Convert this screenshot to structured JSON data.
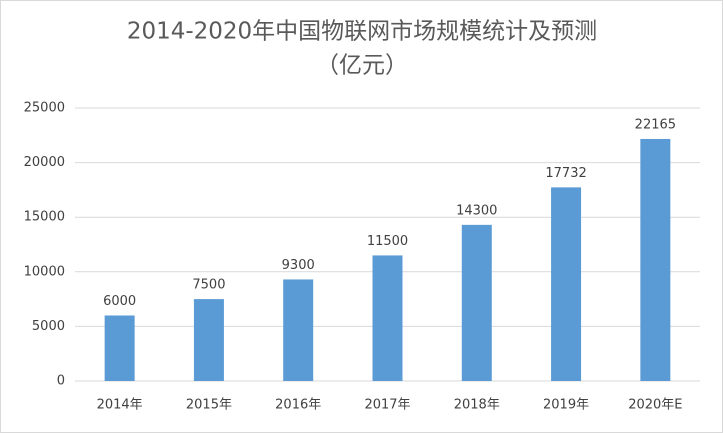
{
  "chart_data": {
    "type": "bar",
    "title": "2014-2020年中国物联网市场规模统计及预测",
    "subtitle": "（亿元）",
    "categories": [
      "2014年",
      "2015年",
      "2016年",
      "2017年",
      "2018年",
      "2019年",
      "2020年E"
    ],
    "values": [
      6000,
      7500,
      9300,
      11500,
      14300,
      17732,
      22165
    ],
    "color": "#5b9bd5",
    "ylim": [
      0,
      25000
    ],
    "yticks": [
      0,
      5000,
      10000,
      15000,
      20000,
      25000
    ],
    "grid": true
  }
}
